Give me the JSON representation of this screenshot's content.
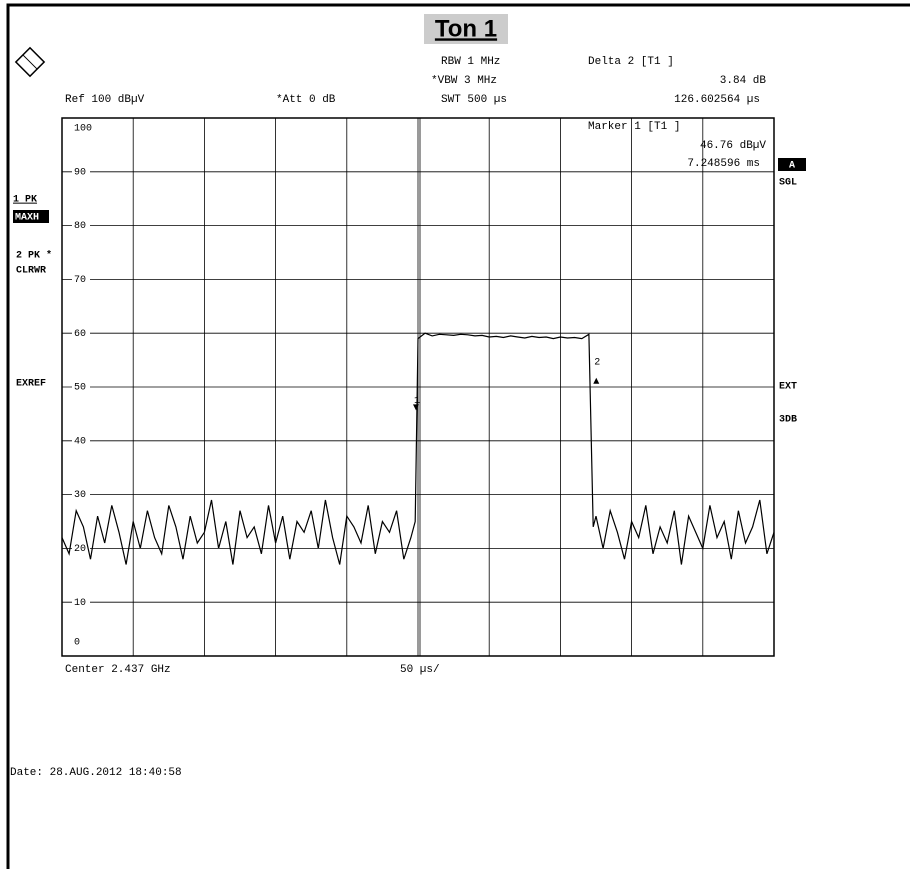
{
  "chart_data": {
    "type": "line",
    "title": "Ton 1",
    "header": {
      "rbw": "RBW 1 MHz",
      "vbw": "*VBW 3 MHz",
      "swt": "SWT 500 µs",
      "ref": "Ref 100 dBµV",
      "att": "*Att 0 dB",
      "delta_title": "Delta 2 [T1 ]",
      "delta_level": "3.84 dB",
      "delta_time": "126.602564 µs",
      "marker_title": "Marker 1 [T1 ]",
      "marker_level": "46.76 dBµV",
      "marker_time": "7.248596 ms"
    },
    "left_labels": [
      "1 PK",
      "MAXH",
      "2 PK *",
      "CLRWR",
      "EXREF"
    ],
    "right_labels": [
      "A",
      "SGL",
      "EXT",
      "3DB"
    ],
    "x_center": "Center 2.437 GHz",
    "x_div": "50 µs/",
    "date": "Date: 28.AUG.2012 18:40:58",
    "xlim": [
      0,
      500
    ],
    "ylim": [
      0,
      100
    ],
    "yticks": [
      0,
      10,
      20,
      30,
      40,
      50,
      60,
      70,
      80,
      90,
      100
    ],
    "grid": true,
    "x": [
      0,
      5,
      10,
      15,
      20,
      25,
      30,
      35,
      40,
      45,
      50,
      55,
      60,
      65,
      70,
      75,
      80,
      85,
      90,
      95,
      100,
      105,
      110,
      115,
      120,
      125,
      130,
      135,
      140,
      145,
      150,
      155,
      160,
      165,
      170,
      175,
      180,
      185,
      190,
      195,
      200,
      205,
      210,
      215,
      220,
      225,
      230,
      235,
      240,
      245,
      248,
      250,
      255,
      260,
      265,
      270,
      275,
      280,
      285,
      290,
      295,
      300,
      305,
      310,
      315,
      320,
      325,
      330,
      335,
      340,
      345,
      350,
      355,
      360,
      365,
      370,
      373,
      375,
      380,
      385,
      390,
      395,
      400,
      405,
      410,
      415,
      420,
      425,
      430,
      435,
      440,
      445,
      450,
      455,
      460,
      465,
      470,
      475,
      480,
      485,
      490,
      495,
      500
    ],
    "series": [
      {
        "name": "1 PK",
        "color": "#000000",
        "values": [
          22,
          19,
          27,
          24,
          18,
          26,
          21,
          28,
          23,
          17,
          25,
          20,
          27,
          22,
          19,
          28,
          24,
          18,
          26,
          21,
          23,
          29,
          20,
          25,
          17,
          27,
          22,
          24,
          19,
          28,
          21,
          26,
          18,
          25,
          23,
          27,
          20,
          29,
          22,
          17,
          26,
          24,
          21,
          28,
          19,
          25,
          23,
          27,
          18,
          22,
          25,
          59,
          60,
          59.5,
          59.8,
          59.7,
          59.6,
          59.8,
          59.7,
          59.5,
          59.6,
          59.3,
          59.4,
          59.2,
          59.5,
          59.3,
          59.1,
          59.4,
          59.2,
          59.3,
          59.0,
          59.3,
          59.1,
          59.2,
          59.0,
          59.8,
          24,
          26,
          20,
          27,
          23,
          18,
          25,
          22,
          28,
          19,
          24,
          21,
          27,
          17,
          26,
          23,
          20,
          28,
          22,
          25,
          18,
          27,
          21,
          24,
          29,
          19,
          23
        ]
      }
    ],
    "markers": [
      {
        "label": "1",
        "x": 248.6,
        "y": 46.76
      },
      {
        "label": "2",
        "x": 375.2,
        "y": 50.6
      }
    ]
  }
}
